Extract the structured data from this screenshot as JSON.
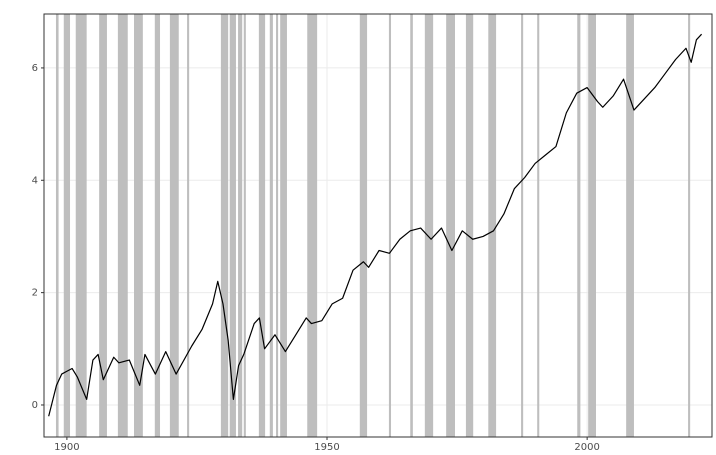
{
  "chart_data": {
    "type": "line",
    "color": "#000000",
    "band_color": "#bebebe",
    "grid": true,
    "x": [
      1896.5,
      1898,
      1899,
      1900,
      1901,
      1902,
      1903.8,
      1905,
      1906,
      1907,
      1909,
      1910,
      1912,
      1914,
      1915,
      1917,
      1919,
      1921,
      1924,
      1926,
      1928,
      1929,
      1930,
      1931,
      1932,
      1933,
      1934,
      1936,
      1937,
      1938,
      1940,
      1942,
      1944,
      1946,
      1947,
      1949,
      1951,
      1953,
      1955,
      1957,
      1958,
      1960,
      1962,
      1964,
      1966,
      1968,
      1970,
      1972,
      1974,
      1976,
      1978,
      1980,
      1982,
      1984,
      1986,
      1988,
      1990,
      1992,
      1994,
      1996,
      1998,
      2000,
      2002,
      2003,
      2005,
      2007,
      2009,
      2011,
      2013,
      2015,
      2017,
      2019,
      2020,
      2021,
      2022
    ],
    "values": [
      -0.2,
      0.35,
      0.55,
      0.6,
      0.65,
      0.5,
      0.1,
      0.8,
      0.9,
      0.45,
      0.85,
      0.75,
      0.8,
      0.35,
      0.9,
      0.55,
      0.95,
      0.55,
      1.05,
      1.35,
      1.8,
      2.2,
      1.8,
      1.15,
      0.1,
      0.7,
      0.9,
      1.45,
      1.55,
      1.0,
      1.25,
      0.95,
      1.25,
      1.55,
      1.45,
      1.5,
      1.8,
      1.9,
      2.4,
      2.55,
      2.45,
      2.75,
      2.7,
      2.95,
      3.1,
      3.15,
      2.95,
      3.15,
      2.75,
      3.1,
      2.95,
      3.0,
      3.1,
      3.4,
      3.85,
      4.05,
      4.3,
      4.45,
      4.6,
      5.2,
      5.55,
      5.65,
      5.4,
      5.3,
      5.5,
      5.8,
      5.25,
      5.45,
      5.65,
      5.9,
      6.15,
      6.35,
      6.1,
      6.5,
      6.6
    ],
    "shaded_spans": [
      [
        1897.9,
        1898.4
      ],
      [
        1899.4,
        1900.6
      ],
      [
        1901.7,
        1903.8
      ],
      [
        1906.2,
        1907.7
      ],
      [
        1909.8,
        1911.7
      ],
      [
        1912.9,
        1914.6
      ],
      [
        1916.9,
        1917.9
      ],
      [
        1919.8,
        1921.5
      ],
      [
        1923.1,
        1923.5
      ],
      [
        1929.6,
        1931.0
      ],
      [
        1931.3,
        1932.5
      ],
      [
        1932.9,
        1933.7
      ],
      [
        1934.0,
        1934.4
      ],
      [
        1936.9,
        1938.1
      ],
      [
        1939.0,
        1939.6
      ],
      [
        1940.2,
        1940.6
      ],
      [
        1941.0,
        1942.3
      ],
      [
        1946.2,
        1948.1
      ],
      [
        1956.3,
        1957.7
      ],
      [
        1961.9,
        1962.3
      ],
      [
        1966.0,
        1966.5
      ],
      [
        1968.8,
        1970.4
      ],
      [
        1972.9,
        1974.6
      ],
      [
        1976.7,
        1978.1
      ],
      [
        1981.0,
        1982.5
      ],
      [
        1987.3,
        1987.7
      ],
      [
        1990.4,
        1990.8
      ],
      [
        1998.1,
        1998.7
      ],
      [
        2000.2,
        2001.7
      ],
      [
        2007.5,
        2009.0
      ],
      [
        2019.4,
        2019.8
      ]
    ],
    "xlim": [
      1895.6,
      2024.0
    ],
    "ylim": [
      -0.57,
      6.96
    ],
    "xticks": [
      1900,
      1950,
      2000
    ],
    "yticks": [
      0,
      2,
      4,
      6
    ]
  }
}
